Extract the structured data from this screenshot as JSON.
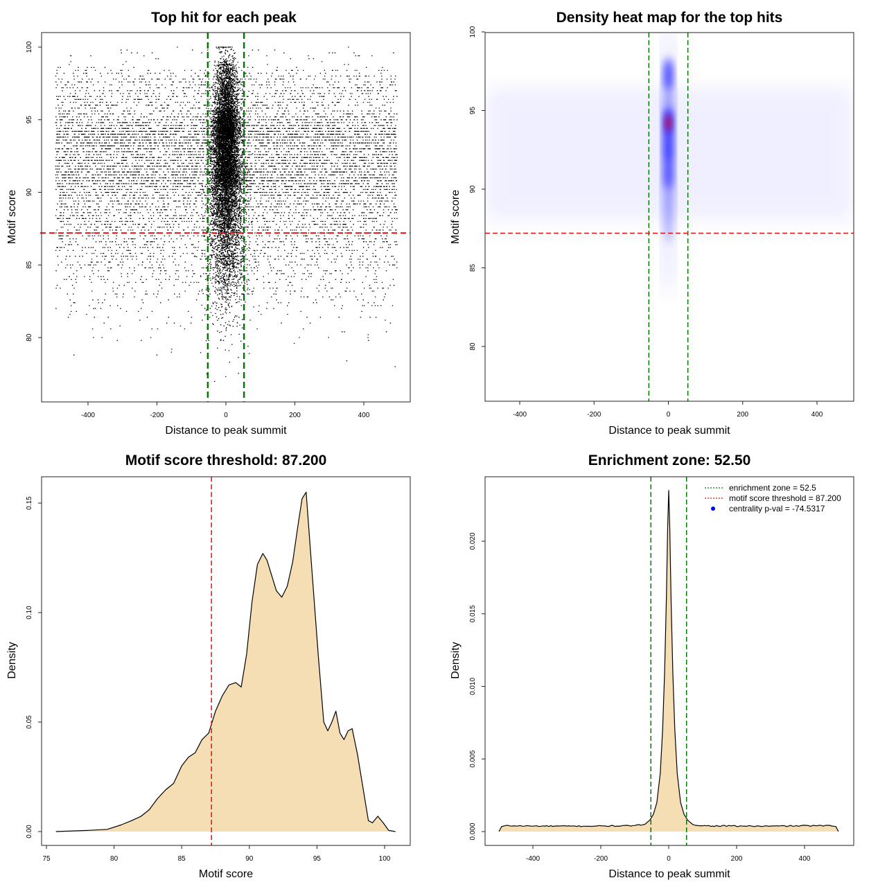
{
  "colors": {
    "threshold_line": "#e01010",
    "zone_line": "#007a00",
    "density_fill": "#f5deb3",
    "points": "#000000",
    "heat_low": "#ffffff",
    "heat_mid": "#0000ff",
    "heat_high": "#ff0000",
    "legend_dot": "#0000ff"
  },
  "chart_data": [
    {
      "id": "scatter",
      "type": "scatter",
      "title": "Top hit for each peak",
      "xlabel": "Distance to peak summit",
      "ylabel": "Motif score",
      "xlim": [
        -500,
        500
      ],
      "ylim": [
        76,
        100
      ],
      "xticks": [
        -400,
        -200,
        0,
        200,
        400
      ],
      "yticks": [
        80,
        85,
        90,
        95,
        100
      ],
      "hline": 87.2,
      "vlines": [
        -52.5,
        52.5
      ],
      "points_description_values": {
        "distance_range": [
          -500,
          500
        ],
        "score_range": [
          76.5,
          100
        ],
        "central_concentration_distance": [
          -25,
          25
        ]
      }
    },
    {
      "id": "heatmap",
      "type": "heatmap",
      "title": "Density heat map for the top hits",
      "xlabel": "Distance to peak summit",
      "ylabel": "Motif score",
      "xlim": [
        -500,
        500
      ],
      "ylim": [
        76,
        100
      ],
      "xticks": [
        -400,
        -200,
        0,
        200,
        400
      ],
      "yticks": [
        80,
        85,
        90,
        95,
        100
      ],
      "hline": 87.2,
      "vlines": [
        -52.5,
        52.5
      ],
      "peak": {
        "x": 0,
        "y": 94.2
      },
      "hotspots": [
        {
          "x": 0,
          "y": 94.2,
          "intensity": 1.0
        },
        {
          "x": 0,
          "y": 97.3,
          "intensity": 0.75
        },
        {
          "x": 0,
          "y": 92.6,
          "intensity": 0.8
        },
        {
          "x": 0,
          "y": 91.0,
          "intensity": 0.6
        }
      ]
    },
    {
      "id": "score_density",
      "type": "area",
      "title": "Motif score threshold: 87.200",
      "xlabel": "Motif score",
      "ylabel": "Density",
      "xlim": [
        74.7,
        101.8
      ],
      "ylim": [
        -0.006,
        0.16
      ],
      "xticks": [
        75,
        80,
        85,
        90,
        95,
        100
      ],
      "yticks": [
        0.0,
        0.05,
        0.1,
        0.15
      ],
      "ytick_labels": [
        "0.00",
        "0.05",
        "0.10",
        "0.15"
      ],
      "vline": 87.2,
      "x": [
        75.7,
        78,
        79.5,
        80.5,
        81.3,
        82,
        82.6,
        83.2,
        83.8,
        84.4,
        85,
        85.5,
        86,
        86.5,
        87,
        87.5,
        88,
        88.5,
        89,
        89.4,
        89.8,
        90.2,
        90.6,
        91,
        91.3,
        91.6,
        92,
        92.4,
        92.8,
        93.2,
        93.6,
        93.9,
        94.2,
        94.5,
        94.8,
        95.1,
        95.5,
        95.8,
        96.1,
        96.4,
        96.7,
        97,
        97.3,
        97.6,
        98,
        98.4,
        98.8,
        99.1,
        99.5,
        99.9,
        100.3,
        100.8
      ],
      "y": [
        0.0,
        0.0005,
        0.001,
        0.003,
        0.005,
        0.007,
        0.01,
        0.015,
        0.019,
        0.022,
        0.03,
        0.034,
        0.036,
        0.042,
        0.045,
        0.055,
        0.062,
        0.067,
        0.068,
        0.066,
        0.081,
        0.105,
        0.122,
        0.127,
        0.124,
        0.118,
        0.11,
        0.107,
        0.112,
        0.123,
        0.14,
        0.152,
        0.155,
        0.13,
        0.105,
        0.08,
        0.05,
        0.046,
        0.05,
        0.055,
        0.045,
        0.042,
        0.046,
        0.047,
        0.035,
        0.02,
        0.005,
        0.004,
        0.007,
        0.004,
        0.0005,
        0.0
      ]
    },
    {
      "id": "distance_density",
      "type": "area",
      "title": "Enrichment zone: 52.50",
      "xlabel": "Distance to peak summit",
      "ylabel": "Density",
      "xlim": [
        -550,
        550
      ],
      "ylim": [
        -0.001,
        0.024
      ],
      "xticks": [
        -400,
        -200,
        0,
        200,
        400
      ],
      "yticks": [
        0.0,
        0.005,
        0.01,
        0.015,
        0.02
      ],
      "ytick_labels": [
        "0.000",
        "0.005",
        "0.010",
        "0.015",
        "0.020"
      ],
      "vlines": [
        -52.5,
        52.5
      ],
      "x": [
        -500,
        -492,
        -480,
        -400,
        -300,
        -200,
        -100,
        -70,
        -55,
        -45,
        -35,
        -25,
        -18,
        -12,
        -7,
        -3,
        0,
        3,
        7,
        12,
        18,
        25,
        35,
        45,
        55,
        70,
        100,
        200,
        300,
        400,
        480,
        492,
        500
      ],
      "y": [
        0.0,
        0.00035,
        0.0004,
        0.00038,
        0.00037,
        0.00038,
        0.0004,
        0.0005,
        0.0008,
        0.0012,
        0.002,
        0.004,
        0.007,
        0.011,
        0.016,
        0.021,
        0.0235,
        0.021,
        0.016,
        0.011,
        0.007,
        0.004,
        0.002,
        0.0012,
        0.0008,
        0.0005,
        0.0004,
        0.00038,
        0.00037,
        0.0004,
        0.0004,
        0.00035,
        0.0
      ],
      "legend": {
        "placement": "top-right",
        "entries": [
          {
            "label": "enrichment zone = 52.5",
            "style": "dotted-line",
            "color": "#007a00"
          },
          {
            "label": "motif score threshold = 87.200",
            "style": "dotted-line",
            "color": "#e01010"
          },
          {
            "label": "centrality p-val = -74.5317",
            "style": "dot",
            "color": "#0000ff"
          }
        ]
      }
    }
  ]
}
